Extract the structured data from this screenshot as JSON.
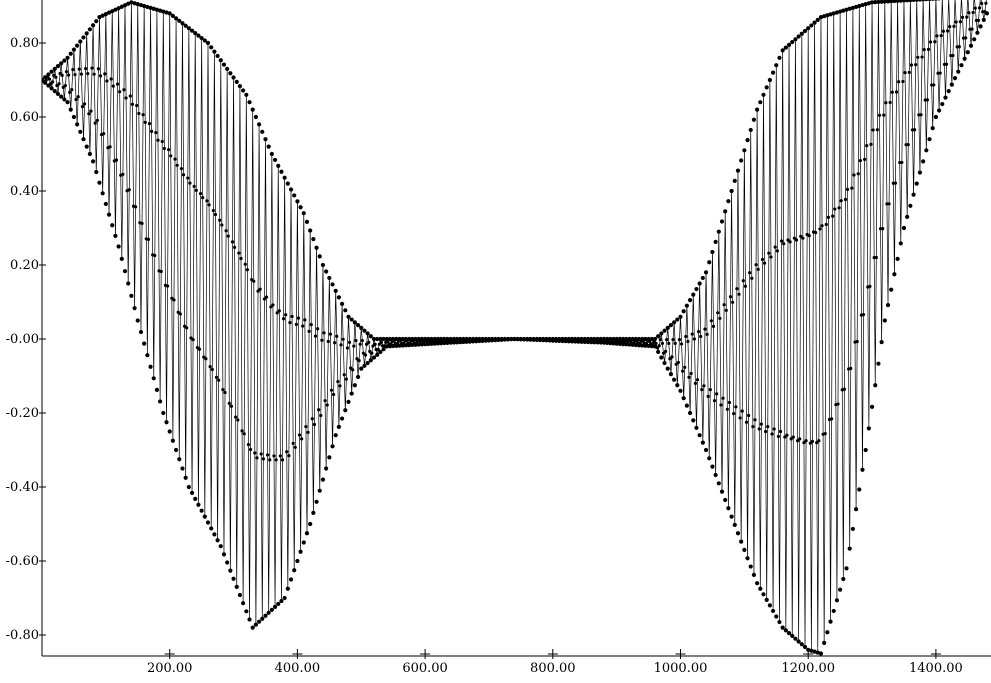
{
  "chart_data": {
    "type": "line",
    "title": "",
    "xlabel": "",
    "ylabel": "",
    "xlim": [
      0,
      1480
    ],
    "ylim": [
      -0.86,
      0.92
    ],
    "grid": false,
    "legend": "none",
    "x_ticks": [
      {
        "value": 200,
        "label": "200.00"
      },
      {
        "value": 400,
        "label": "400.00"
      },
      {
        "value": 600,
        "label": "600.00"
      },
      {
        "value": 800,
        "label": "800.00"
      },
      {
        "value": 1000,
        "label": "1000.00"
      },
      {
        "value": 1200,
        "label": "1200.00"
      },
      {
        "value": 1400,
        "label": "1400.00"
      }
    ],
    "y_ticks": [
      {
        "value": 0.8,
        "label": "0.80"
      },
      {
        "value": 0.6,
        "label": "0.60"
      },
      {
        "value": 0.4,
        "label": "0.40"
      },
      {
        "value": 0.2,
        "label": "0.20"
      },
      {
        "value": 0.0,
        "label": "-0.00"
      },
      {
        "value": -0.2,
        "label": "-0.20"
      },
      {
        "value": -0.4,
        "label": "-0.40"
      },
      {
        "value": -0.6,
        "label": "-0.60"
      },
      {
        "value": -0.8,
        "label": "-0.80"
      }
    ],
    "series": [
      {
        "line_color": "#000000",
        "marker_color": "#000000",
        "x_start": 0,
        "x_end": 1480,
        "x_step": 5,
        "upper_envelope": [
          [
            0,
            0.7
          ],
          [
            40,
            0.76
          ],
          [
            90,
            0.87
          ],
          [
            140,
            0.91
          ],
          [
            200,
            0.88
          ],
          [
            260,
            0.8
          ],
          [
            320,
            0.66
          ],
          [
            360,
            0.5
          ],
          [
            410,
            0.34
          ],
          [
            440,
            0.2
          ],
          [
            480,
            0.06
          ],
          [
            520,
            0.0
          ],
          [
            560,
            0.0
          ],
          [
            640,
            0.0
          ],
          [
            740,
            0.0
          ],
          [
            880,
            0.0
          ],
          [
            960,
            0.0
          ],
          [
            1000,
            0.06
          ],
          [
            1040,
            0.18
          ],
          [
            1080,
            0.4
          ],
          [
            1120,
            0.62
          ],
          [
            1160,
            0.78
          ],
          [
            1220,
            0.87
          ],
          [
            1300,
            0.91
          ],
          [
            1400,
            0.92
          ],
          [
            1480,
            0.93
          ]
        ],
        "lower_envelope": [
          [
            0,
            0.7
          ],
          [
            40,
            0.64
          ],
          [
            80,
            0.48
          ],
          [
            120,
            0.25
          ],
          [
            150,
            0.05
          ],
          [
            190,
            -0.2
          ],
          [
            230,
            -0.4
          ],
          [
            280,
            -0.56
          ],
          [
            330,
            -0.78
          ],
          [
            380,
            -0.7
          ],
          [
            420,
            -0.5
          ],
          [
            460,
            -0.26
          ],
          [
            500,
            -0.08
          ],
          [
            540,
            -0.02
          ],
          [
            640,
            -0.01
          ],
          [
            740,
            0.0
          ],
          [
            880,
            -0.01
          ],
          [
            960,
            -0.02
          ],
          [
            1000,
            -0.14
          ],
          [
            1040,
            -0.3
          ],
          [
            1080,
            -0.48
          ],
          [
            1120,
            -0.66
          ],
          [
            1160,
            -0.78
          ],
          [
            1200,
            -0.84
          ],
          [
            1220,
            -0.85
          ],
          [
            1260,
            -0.62
          ],
          [
            1290,
            -0.3
          ],
          [
            1320,
            0.05
          ],
          [
            1350,
            0.3
          ],
          [
            1400,
            0.6
          ],
          [
            1480,
            0.88
          ]
        ]
      }
    ]
  }
}
